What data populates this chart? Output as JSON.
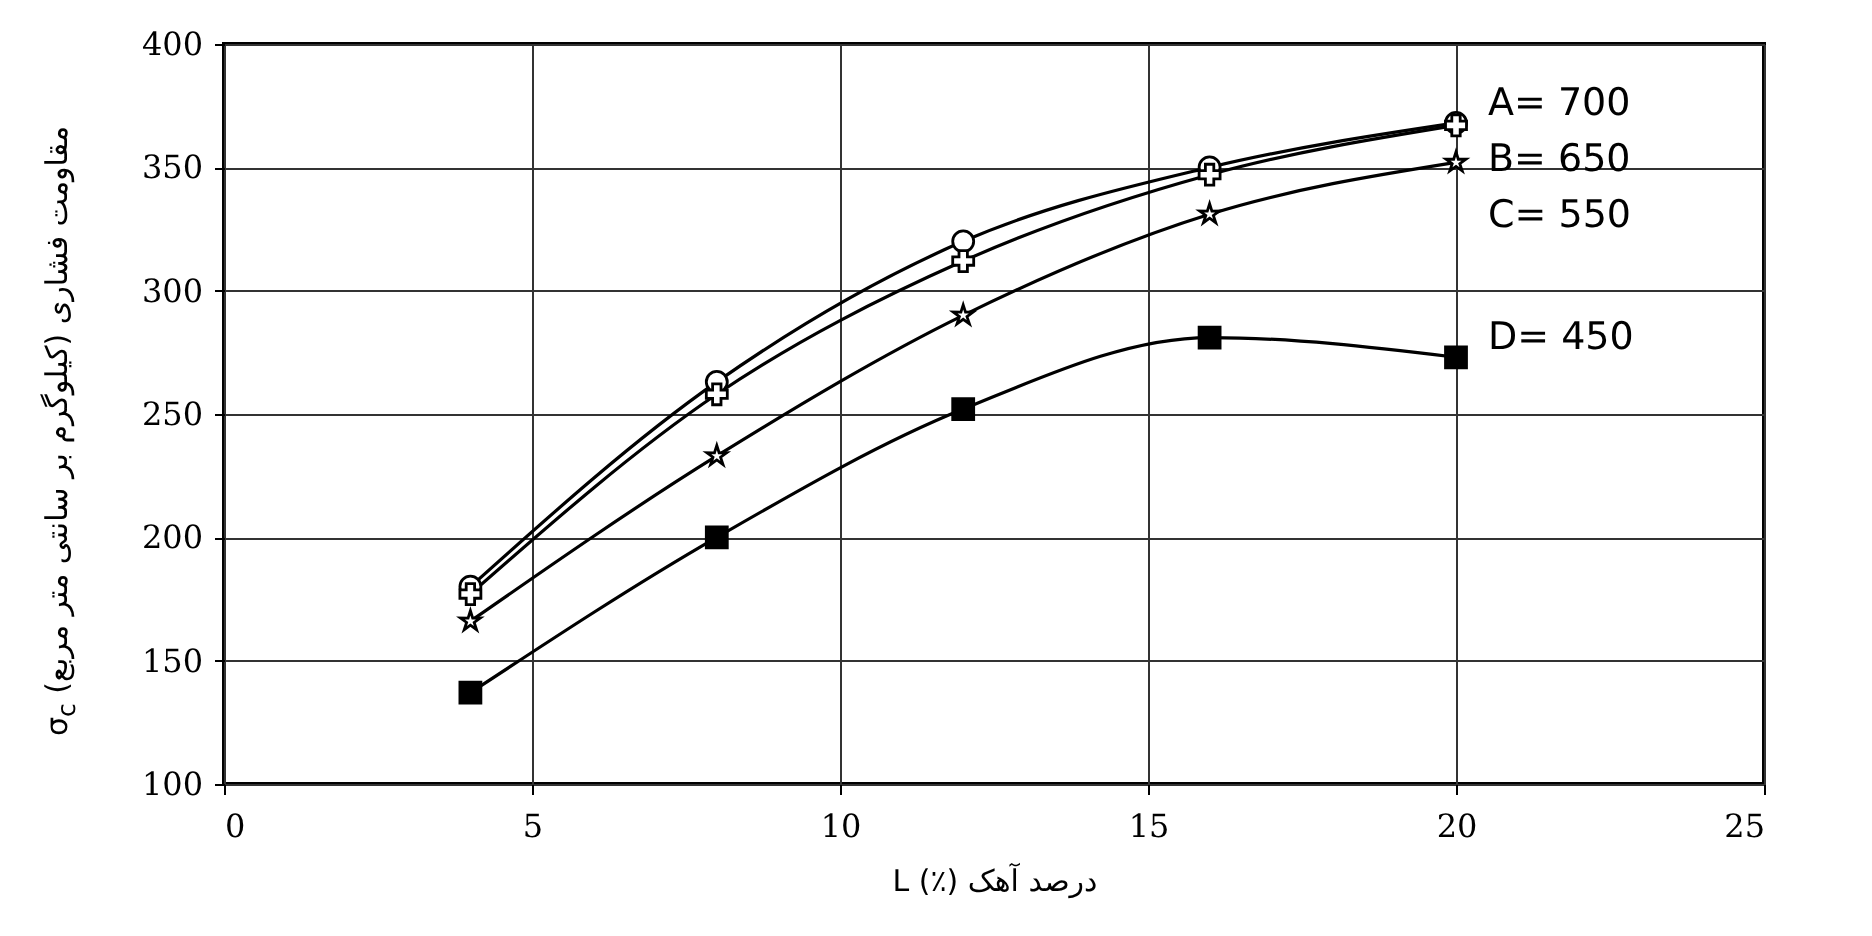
{
  "chart_data": {
    "type": "line",
    "xlabel": "L (٪) درصد آهک",
    "ylabel": "مقاومت فشاری (کیلوگرم بر سانتی متر مربع) σ$_{c}$",
    "x": [
      4,
      8,
      12,
      16,
      20
    ],
    "series": [
      {
        "name": "A= 700",
        "color": "#000000",
        "marker": "circle",
        "values": [
          180,
          263,
          320,
          350,
          368
        ]
      },
      {
        "name": "B= 650",
        "color": "#000000",
        "marker": "cross",
        "values": [
          177,
          258,
          312,
          347,
          367
        ]
      },
      {
        "name": "C= 550",
        "color": "#000000",
        "marker": "star",
        "values": [
          166,
          233,
          290,
          331,
          352
        ]
      },
      {
        "name": "D= 450",
        "color": "#000000",
        "marker": "square",
        "values": [
          137,
          200,
          252,
          281,
          273
        ]
      }
    ],
    "xlim": [
      0,
      25
    ],
    "xticks": [
      0,
      5,
      10,
      15,
      20,
      25
    ],
    "ylim": [
      100,
      400
    ],
    "yticks": [
      100,
      150,
      200,
      250,
      300,
      350,
      400
    ],
    "grid": true,
    "line_style": "solid"
  }
}
